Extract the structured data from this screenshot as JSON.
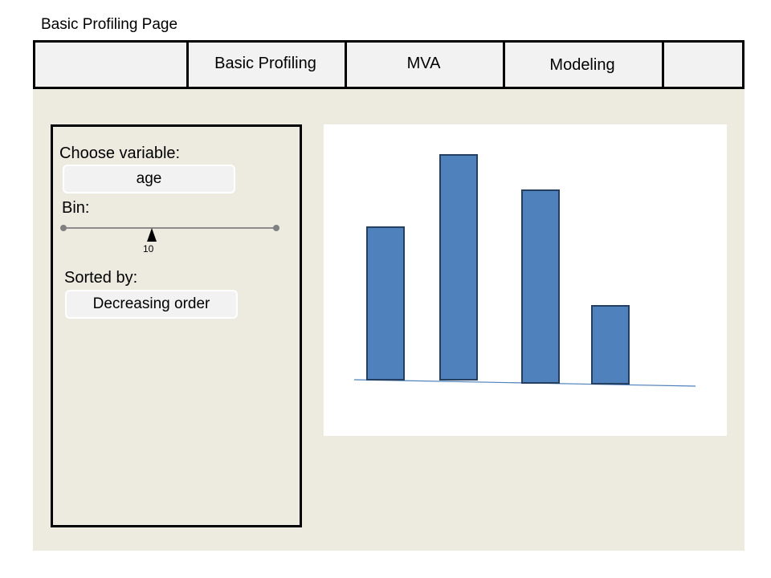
{
  "page": {
    "title": "Basic Profiling Page"
  },
  "tabs": [
    {
      "label": ""
    },
    {
      "label": "Basic Profiling"
    },
    {
      "label": "MVA"
    },
    {
      "label": "Modeling"
    },
    {
      "label": ""
    }
  ],
  "controls": {
    "variable_label": "Choose variable:",
    "variable_value": "age",
    "bin_label": "Bin:",
    "bin_value": "10",
    "sort_label": "Sorted by:",
    "sort_value": "Decreasing order"
  },
  "colors": {
    "bar_fill": "#4f81bd",
    "bar_stroke": "#243f60",
    "axis_line": "#4f81bd",
    "content_bg": "#edebe0"
  },
  "chart_data": {
    "type": "bar",
    "categories": [
      "",
      "",
      "",
      ""
    ],
    "values": [
      190,
      280,
      240,
      97
    ],
    "title": "",
    "xlabel": "",
    "ylabel": ""
  }
}
